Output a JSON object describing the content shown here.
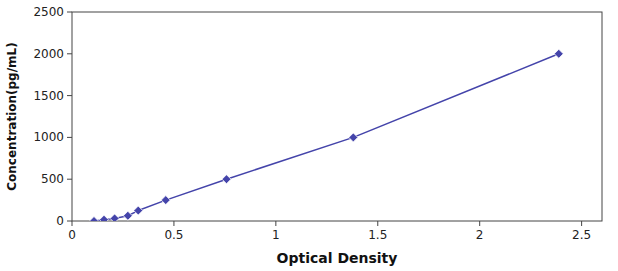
{
  "chart_data": {
    "type": "line",
    "x": [
      0.108,
      0.157,
      0.209,
      0.274,
      0.325,
      0.46,
      0.758,
      1.38,
      2.388
    ],
    "values": [
      0,
      15.6,
      31.2,
      62.5,
      125,
      250,
      500,
      1000,
      2000
    ],
    "color": "#4444aa",
    "marker": "diamond",
    "line_style": "solid",
    "xlabel": "Optical Density",
    "ylabel": "Concentration(pg/mL)",
    "xlim": [
      0.0,
      2.6
    ],
    "ylim": [
      0,
      2500
    ],
    "xticks": [
      0,
      0.5,
      1,
      1.5,
      2,
      2.5
    ],
    "yticks": [
      0,
      500,
      1000,
      1500,
      2000,
      2500
    ]
  }
}
